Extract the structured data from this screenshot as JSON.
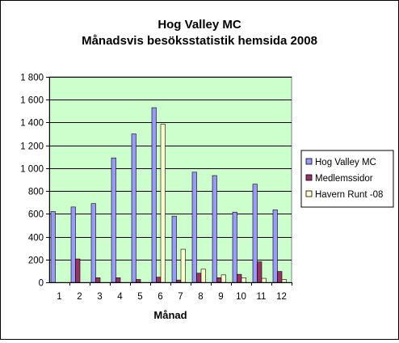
{
  "chart_data": {
    "type": "bar",
    "title": "Hog Valley MC",
    "subtitle": "Månadsvis besöksstatistik hemsida 2008",
    "xlabel": "Månad",
    "ylabel": "",
    "categories": [
      "1",
      "2",
      "3",
      "4",
      "5",
      "6",
      "7",
      "8",
      "9",
      "10",
      "11",
      "12"
    ],
    "ylim": [
      0,
      1800
    ],
    "yticks": [
      0,
      200,
      400,
      600,
      800,
      1000,
      1200,
      1400,
      1600,
      1800
    ],
    "ytick_labels": [
      "0",
      "200",
      "400",
      "600",
      "800",
      "1 000",
      "1 200",
      "1 400",
      "1 600",
      "1 800"
    ],
    "grid": true,
    "legend_position": "right",
    "plot_background": "#ccffcc",
    "series": [
      {
        "name": "Hog Valley MC",
        "color": "#9999ff",
        "values": [
          620,
          660,
          690,
          1090,
          1300,
          1530,
          580,
          965,
          935,
          615,
          860,
          635
        ]
      },
      {
        "name": "Medlemssidor",
        "color": "#993366",
        "values": [
          0,
          205,
          40,
          40,
          25,
          45,
          20,
          80,
          40,
          70,
          180,
          95
        ]
      },
      {
        "name": "Havern Runt -08",
        "color": "#ffffcc",
        "values": [
          0,
          0,
          0,
          0,
          0,
          1385,
          290,
          115,
          65,
          40,
          35,
          25
        ]
      }
    ]
  }
}
